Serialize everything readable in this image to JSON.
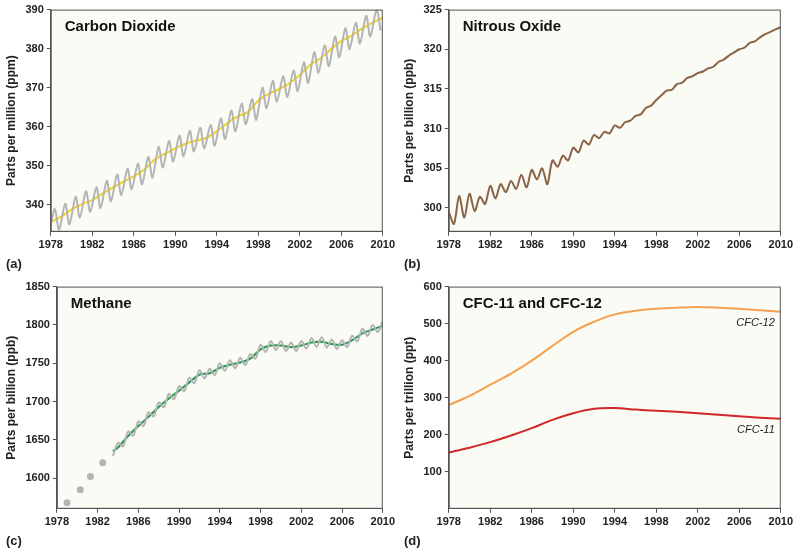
{
  "chart_data": [
    {
      "type": "line",
      "annotation": "(a)",
      "title": "Carbon Dioxide",
      "y_label": "Parts per million (ppm)",
      "xlim": [
        1978,
        2010
      ],
      "xticks": [
        1978,
        1982,
        1986,
        1990,
        1994,
        1998,
        2002,
        2006,
        2010
      ],
      "ylim": [
        333,
        390
      ],
      "yticks": [
        340,
        350,
        360,
        370,
        380,
        390
      ],
      "grid": false,
      "series": [
        {
          "color": "#b4b4b4",
          "x": [
            1978.0,
            1978.4,
            1978.8,
            1979.4,
            1979.8,
            1980.4,
            1980.8,
            1981.4,
            1981.8,
            1982.4,
            1982.8,
            1983.4,
            1983.8,
            1984.4,
            1984.8,
            1985.4,
            1985.8,
            1986.4,
            1986.8,
            1987.4,
            1987.8,
            1988.4,
            1988.8,
            1989.4,
            1989.8,
            1990.4,
            1990.8,
            1991.4,
            1991.8,
            1992.4,
            1992.8,
            1993.4,
            1993.8,
            1994.4,
            1994.8,
            1995.4,
            1995.8,
            1996.4,
            1996.8,
            1997.4,
            1997.8,
            1998.4,
            1998.8,
            1999.4,
            1999.8,
            2000.4,
            2000.8,
            2001.4,
            2001.8,
            2002.4,
            2002.8,
            2003.4,
            2003.8,
            2004.4,
            2004.8,
            2005.4,
            2005.8,
            2006.4,
            2006.8,
            2007.4,
            2007.8,
            2008.4,
            2008.8,
            2009.4,
            2009.8
          ],
          "values": [
            335.0,
            338.8,
            333.5,
            340.2,
            334.9,
            342.0,
            336.7,
            343.4,
            338.1,
            344.4,
            339.1,
            346.1,
            340.8,
            347.7,
            342.4,
            349.2,
            343.9,
            350.5,
            345.2,
            352.2,
            346.9,
            354.8,
            349.5,
            356.3,
            351.0,
            357.7,
            352.4,
            358.9,
            353.6,
            359.7,
            354.4,
            360.4,
            355.1,
            362.1,
            356.8,
            364.1,
            358.8,
            365.9,
            360.6,
            367.0,
            361.7,
            370.0,
            364.7,
            371.7,
            366.4,
            372.9,
            367.6,
            374.4,
            369.1,
            376.5,
            371.2,
            379.1,
            373.8,
            380.8,
            375.5,
            383.1,
            377.8,
            385.2,
            379.9,
            386.6,
            381.3,
            388.4,
            383.1,
            389.9,
            384.6
          ]
        },
        {
          "color": "#f2d31b",
          "x": [
            1978,
            1979,
            1980,
            1981,
            1982,
            1983,
            1984,
            1985,
            1986,
            1987,
            1988,
            1989,
            1990,
            1991,
            1992,
            1993,
            1994,
            1995,
            1996,
            1997,
            1998,
            1999,
            2000,
            2001,
            2002,
            2003,
            2004,
            2005,
            2006,
            2007,
            2008,
            2009,
            2010
          ],
          "values": [
            335.5,
            336.9,
            338.7,
            340.1,
            341.1,
            342.8,
            344.4,
            345.9,
            347.2,
            348.9,
            351.5,
            353.0,
            354.4,
            355.6,
            356.4,
            357.1,
            358.8,
            360.8,
            362.6,
            363.7,
            366.7,
            368.4,
            369.6,
            371.1,
            373.2,
            375.8,
            377.5,
            379.8,
            381.9,
            383.3,
            385.1,
            386.6,
            388.0
          ]
        }
      ]
    },
    {
      "type": "line",
      "annotation": "(b)",
      "title": "Nitrous Oxide",
      "y_label": "Parts per billion (ppb)",
      "xlim": [
        1978,
        2010
      ],
      "xticks": [
        1978,
        1982,
        1986,
        1990,
        1994,
        1998,
        2002,
        2006,
        2010
      ],
      "ylim": [
        297,
        325
      ],
      "yticks": [
        300,
        305,
        310,
        315,
        320,
        325
      ],
      "grid": false,
      "series": [
        {
          "color": "#8b6347",
          "x": [
            1978.0,
            1978.5,
            1979.0,
            1979.5,
            1980.0,
            1980.5,
            1981.0,
            1981.5,
            1982.0,
            1982.5,
            1983.0,
            1983.5,
            1984.0,
            1984.5,
            1985.0,
            1985.5,
            1986.0,
            1986.5,
            1987.0,
            1987.5,
            1988.0,
            1988.5,
            1989.0,
            1989.5,
            1990.0,
            1990.5,
            1991.0,
            1991.5,
            1992.0,
            1992.5,
            1993.0,
            1993.5,
            1994.0,
            1994.5,
            1995.0,
            1995.5,
            1996.0,
            1996.5,
            1997.0,
            1997.5,
            1998.0,
            1998.5,
            1999.0,
            1999.5,
            2000.0,
            2000.5,
            2001.0,
            2001.5,
            2002.0,
            2002.5,
            2003.0,
            2003.5,
            2004.0,
            2004.5,
            2005.0,
            2005.5,
            2006.0,
            2006.5,
            2007.0,
            2007.5,
            2008.0,
            2008.5,
            2009.0,
            2009.5,
            2010.0
          ],
          "values": [
            299.5,
            298.0,
            301.5,
            298.8,
            301.8,
            299.6,
            301.4,
            300.5,
            302.8,
            301.2,
            303.0,
            302.0,
            303.4,
            302.4,
            304.2,
            302.6,
            304.8,
            303.6,
            305.0,
            303.0,
            306.0,
            305.2,
            306.6,
            306.0,
            307.6,
            307.0,
            308.5,
            308.0,
            309.2,
            308.8,
            309.6,
            309.4,
            310.4,
            310.1,
            310.8,
            311.0,
            311.6,
            311.8,
            312.6,
            312.9,
            313.6,
            314.2,
            314.8,
            314.9,
            315.6,
            315.8,
            316.4,
            316.6,
            317.0,
            317.2,
            317.6,
            317.8,
            318.4,
            318.7,
            319.2,
            319.6,
            320.0,
            320.2,
            320.8,
            321.0,
            321.5,
            321.9,
            322.2,
            322.5,
            322.8
          ]
        }
      ]
    },
    {
      "type": "line",
      "annotation": "(c)",
      "title": "Methane",
      "y_label": "Parts per billion (ppb)",
      "xlim": [
        1978,
        2010
      ],
      "xticks": [
        1978,
        1982,
        1986,
        1990,
        1994,
        1998,
        2002,
        2006,
        2010
      ],
      "ylim": [
        1560,
        1850
      ],
      "yticks": [
        1600,
        1650,
        1700,
        1750,
        1800,
        1850
      ],
      "grid": false,
      "series": [
        {
          "type": "scatter",
          "marker": "circle",
          "color": "#b4b4b4",
          "x": [
            1979.0,
            1980.3,
            1981.3,
            1982.5
          ],
          "values": [
            1568,
            1585,
            1602,
            1620
          ]
        },
        {
          "color": "#b4b4b4",
          "x": [
            1983.5,
            1984.0,
            1984.5,
            1985.0,
            1985.5,
            1986.0,
            1986.5,
            1987.0,
            1987.5,
            1988.0,
            1988.5,
            1989.0,
            1989.5,
            1990.0,
            1990.5,
            1991.0,
            1991.5,
            1992.0,
            1992.5,
            1993.0,
            1993.5,
            1994.0,
            1994.5,
            1995.0,
            1995.5,
            1996.0,
            1996.5,
            1997.0,
            1997.5,
            1998.0,
            1998.5,
            1999.0,
            1999.5,
            2000.0,
            2000.5,
            2001.0,
            2001.5,
            2002.0,
            2002.5,
            2003.0,
            2003.5,
            2004.0,
            2004.5,
            2005.0,
            2005.5,
            2006.0,
            2006.5,
            2007.0,
            2007.5,
            2008.0,
            2008.5,
            2009.0,
            2009.5,
            2010.0
          ],
          "values": [
            1629,
            1646,
            1641.5,
            1661,
            1655.5,
            1674,
            1668,
            1686,
            1680.5,
            1699,
            1692.5,
            1710,
            1703,
            1720,
            1713.5,
            1731,
            1724,
            1741,
            1730,
            1743,
            1734.5,
            1750,
            1740,
            1754,
            1743.5,
            1757,
            1747.5,
            1762,
            1756,
            1774,
            1764.5,
            1779,
            1767,
            1779,
            1766,
            1777,
            1766,
            1779,
            1769,
            1783,
            1771.5,
            1784,
            1770.5,
            1781,
            1768.5,
            1780,
            1771,
            1786,
            1778.5,
            1795,
            1785.5,
            1800,
            1790.5,
            1805
          ]
        },
        {
          "color": "#1f9a4a",
          "x": [
            1983.5,
            1984,
            1985,
            1986,
            1987,
            1988,
            1989,
            1990,
            1991,
            1992,
            1993,
            1994,
            1995,
            1996,
            1997,
            1998,
            1999,
            2000,
            2001,
            2002,
            2003,
            2004,
            2005,
            2006,
            2007,
            2008,
            2009,
            2010
          ],
          "values": [
            1635,
            1640,
            1655,
            1668,
            1680,
            1693,
            1704,
            1714,
            1725,
            1735,
            1737,
            1744,
            1748,
            1751,
            1756,
            1768,
            1773,
            1773,
            1771,
            1773,
            1777,
            1778,
            1775,
            1774,
            1780,
            1789,
            1794,
            1799
          ]
        }
      ]
    },
    {
      "type": "line",
      "annotation": "(d)",
      "title": "CFC-11 and CFC-12",
      "y_label": "Parts per trillion (ppt)",
      "xlim": [
        1978,
        2010
      ],
      "xticks": [
        1978,
        1982,
        1986,
        1990,
        1994,
        1998,
        2002,
        2006,
        2010
      ],
      "ylim": [
        0,
        600
      ],
      "yticks": [
        100,
        200,
        300,
        400,
        500,
        600
      ],
      "grid": false,
      "series": [
        {
          "name": "CFC-12",
          "color": "#f5a04e",
          "x": [
            1978,
            1980,
            1982,
            1984,
            1986,
            1988,
            1990,
            1992,
            1994,
            1996,
            1998,
            2000,
            2002,
            2004,
            2006,
            2008,
            2010
          ],
          "values": [
            280,
            305,
            335,
            365,
            400,
            440,
            478,
            505,
            525,
            535,
            540,
            543,
            545,
            543,
            540,
            536,
            532
          ]
        },
        {
          "name": "CFC-11",
          "color": "#d02828",
          "x": [
            1978,
            1980,
            1982,
            1984,
            1986,
            1988,
            1990,
            1992,
            1994,
            1996,
            1998,
            2000,
            2002,
            2004,
            2006,
            2008,
            2010
          ],
          "values": [
            152,
            165,
            180,
            198,
            218,
            240,
            258,
            270,
            272,
            268,
            265,
            262,
            258,
            254,
            250,
            246,
            243
          ]
        }
      ]
    }
  ]
}
